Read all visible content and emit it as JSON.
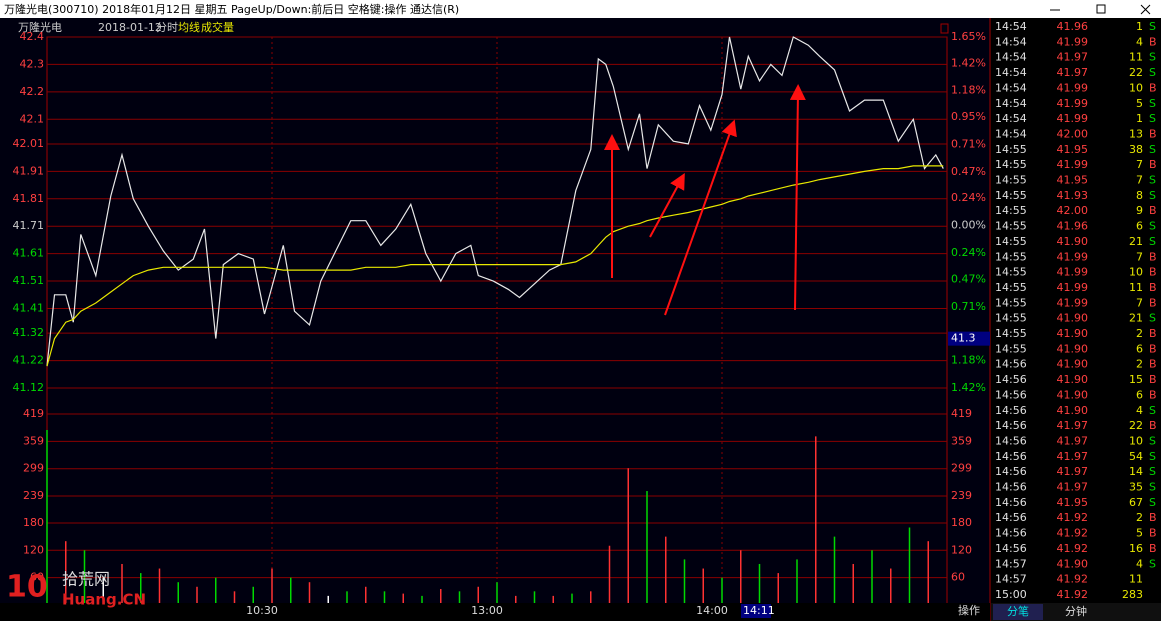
{
  "window": {
    "title": "万隆光电(300710) 2018年01月12日 星期五 PageUp/Down:前后日 空格键:操作 通达信(R)"
  },
  "header": {
    "name": "万隆光电",
    "date": "2018-01-12",
    "mode": "分时",
    "avg_label": "均线",
    "vol_label": "成交量"
  },
  "chart_data": {
    "type": "line",
    "x": [
      0,
      2,
      5,
      7,
      9,
      13,
      17,
      20,
      23,
      27,
      31,
      35,
      39,
      42,
      45,
      47,
      51,
      55,
      58,
      63,
      66,
      70,
      73,
      77,
      81,
      85,
      89,
      93,
      97,
      101,
      105,
      109,
      113,
      115,
      119,
      123,
      126,
      130,
      134,
      137,
      141,
      145,
      147,
      149,
      151,
      155,
      158,
      160,
      163,
      167,
      171,
      174,
      177,
      180,
      182,
      185,
      187,
      190,
      193,
      196,
      199,
      203,
      206,
      210,
      214,
      218,
      223,
      227,
      231,
      234,
      237,
      239
    ],
    "xlim": [
      0,
      240
    ],
    "xticks": [
      {
        "value": 60,
        "label": "10:30"
      },
      {
        "value": 120,
        "label": "13:00"
      },
      {
        "value": 180,
        "label": "14:00"
      }
    ],
    "series": [
      {
        "name": "price",
        "color": "#e8e8e8",
        "values": [
          41.2,
          41.46,
          41.46,
          41.36,
          41.68,
          41.53,
          41.82,
          41.97,
          41.81,
          41.71,
          41.62,
          41.55,
          41.59,
          41.7,
          41.3,
          41.57,
          41.61,
          41.59,
          41.39,
          41.64,
          41.4,
          41.35,
          41.51,
          41.62,
          41.73,
          41.73,
          41.64,
          41.7,
          41.79,
          41.61,
          41.51,
          41.61,
          41.64,
          41.53,
          41.51,
          41.48,
          41.45,
          41.5,
          41.55,
          41.57,
          41.84,
          41.99,
          42.32,
          42.3,
          42.22,
          41.99,
          42.12,
          41.92,
          42.08,
          42.02,
          42.01,
          42.15,
          42.06,
          42.19,
          42.4,
          42.21,
          42.33,
          42.24,
          42.3,
          42.26,
          42.4,
          42.37,
          42.33,
          42.28,
          42.13,
          42.17,
          42.17,
          42.02,
          42.1,
          41.92,
          41.97,
          41.92
        ]
      },
      {
        "name": "均线",
        "color": "#e8e800",
        "values": [
          41.2,
          41.3,
          41.36,
          41.37,
          41.4,
          41.43,
          41.47,
          41.5,
          41.53,
          41.55,
          41.56,
          41.56,
          41.56,
          41.56,
          41.56,
          41.56,
          41.56,
          41.56,
          41.56,
          41.55,
          41.55,
          41.55,
          41.55,
          41.55,
          41.55,
          41.56,
          41.56,
          41.56,
          41.57,
          41.57,
          41.57,
          41.57,
          41.57,
          41.57,
          41.57,
          41.57,
          41.57,
          41.57,
          41.57,
          41.57,
          41.58,
          41.61,
          41.64,
          41.67,
          41.69,
          41.71,
          41.72,
          41.73,
          41.74,
          41.75,
          41.76,
          41.77,
          41.78,
          41.79,
          41.8,
          41.81,
          41.82,
          41.83,
          41.84,
          41.85,
          41.86,
          41.87,
          41.88,
          41.89,
          41.9,
          41.91,
          41.92,
          41.92,
          41.93,
          41.93,
          41.93,
          41.93
        ]
      }
    ],
    "ylim": [
      41.12,
      42.4
    ],
    "yticks": [
      42.4,
      42.3,
      42.2,
      42.1,
      42.01,
      41.91,
      41.81,
      41.71,
      41.61,
      41.51,
      41.41,
      41.32,
      41.22,
      41.12
    ],
    "y2lim": [
      -1.42,
      1.65
    ],
    "y2ticks": [
      {
        "value": 1.65,
        "label": "1.65%"
      },
      {
        "value": 1.42,
        "label": "1.42%"
      },
      {
        "value": 1.18,
        "label": "1.18%"
      },
      {
        "value": 0.95,
        "label": "0.95%"
      },
      {
        "value": 0.71,
        "label": "0.71%"
      },
      {
        "value": 0.47,
        "label": "0.47%"
      },
      {
        "value": 0.24,
        "label": "0.24%"
      },
      {
        "value": 0,
        "label": "0.00%"
      },
      {
        "value": -0.24,
        "label": "0.24%"
      },
      {
        "value": -0.47,
        "label": "0.47%"
      },
      {
        "value": -0.71,
        "label": "0.71%"
      },
      {
        "value": -1.18,
        "label": "1.18%"
      },
      {
        "value": -1.42,
        "label": "1.42%"
      }
    ],
    "cursor_price": 41.3,
    "cursor_time": "14:11",
    "grid": true,
    "volume": {
      "type": "bar",
      "x": [
        0,
        5,
        10,
        15,
        20,
        25,
        30,
        35,
        40,
        45,
        50,
        55,
        60,
        65,
        70,
        75,
        80,
        85,
        90,
        95,
        100,
        105,
        110,
        115,
        120,
        125,
        130,
        135,
        140,
        145,
        150,
        155,
        160,
        165,
        170,
        175,
        180,
        185,
        190,
        195,
        200,
        205,
        210,
        215,
        220,
        225,
        230,
        235
      ],
      "values": [
        384,
        140,
        120,
        60,
        90,
        70,
        80,
        50,
        40,
        60,
        30,
        40,
        80,
        60,
        50,
        20,
        30,
        40,
        30,
        25,
        20,
        35,
        30,
        40,
        50,
        20,
        30,
        20,
        25,
        30,
        130,
        300,
        250,
        150,
        100,
        80,
        60,
        120,
        90,
        70,
        100,
        370,
        150,
        90,
        120,
        80,
        170,
        140
      ],
      "colors": [
        "#00d800",
        "#ff3232",
        "#00d800",
        "#ffffff",
        "#ff3232",
        "#00d800",
        "#ff3232",
        "#00d800",
        "#ff3232",
        "#00d800",
        "#ff3232",
        "#00d800",
        "#ff3232",
        "#00d800",
        "#ff3232",
        "#ffffff",
        "#00d800",
        "#ff3232",
        "#00d800",
        "#ff3232",
        "#00d800",
        "#ff3232",
        "#00d800",
        "#ff3232",
        "#00d800",
        "#ff3232",
        "#00d800",
        "#ff3232",
        "#00d800",
        "#ff3232",
        "#ff3232",
        "#ff3232",
        "#00d800",
        "#ff3232",
        "#00d800",
        "#ff3232",
        "#00d800",
        "#ff3232",
        "#00d800",
        "#ff3232",
        "#00d800",
        "#ff3232",
        "#00d800",
        "#ff3232",
        "#00d800",
        "#ff3232",
        "#00d800",
        "#ff3232"
      ],
      "ylim": [
        0,
        419
      ],
      "yticks": [
        419,
        359,
        299,
        239,
        180,
        120,
        60
      ]
    }
  },
  "trades": {
    "rows": [
      [
        "14:54",
        "41.96",
        "1",
        "S"
      ],
      [
        "14:54",
        "41.99",
        "4",
        "B"
      ],
      [
        "14:54",
        "41.97",
        "11",
        "S"
      ],
      [
        "14:54",
        "41.97",
        "22",
        "S"
      ],
      [
        "14:54",
        "41.99",
        "10",
        "B"
      ],
      [
        "14:54",
        "41.99",
        "5",
        "S"
      ],
      [
        "14:54",
        "41.99",
        "1",
        "S"
      ],
      [
        "14:54",
        "42.00",
        "13",
        "B"
      ],
      [
        "14:55",
        "41.95",
        "38",
        "S"
      ],
      [
        "14:55",
        "41.99",
        "7",
        "B"
      ],
      [
        "14:55",
        "41.95",
        "7",
        "S"
      ],
      [
        "14:55",
        "41.93",
        "8",
        "S"
      ],
      [
        "14:55",
        "42.00",
        "9",
        "B"
      ],
      [
        "14:55",
        "41.96",
        "6",
        "S"
      ],
      [
        "14:55",
        "41.90",
        "21",
        "S"
      ],
      [
        "14:55",
        "41.99",
        "7",
        "B"
      ],
      [
        "14:55",
        "41.99",
        "10",
        "B"
      ],
      [
        "14:55",
        "41.99",
        "11",
        "B"
      ],
      [
        "14:55",
        "41.99",
        "7",
        "B"
      ],
      [
        "14:55",
        "41.90",
        "21",
        "S"
      ],
      [
        "14:55",
        "41.90",
        "2",
        "B"
      ],
      [
        "14:55",
        "41.90",
        "6",
        "B"
      ],
      [
        "14:56",
        "41.90",
        "2",
        "B"
      ],
      [
        "14:56",
        "41.90",
        "15",
        "B"
      ],
      [
        "14:56",
        "41.90",
        "6",
        "B"
      ],
      [
        "14:56",
        "41.90",
        "4",
        "S"
      ],
      [
        "14:56",
        "41.97",
        "22",
        "B"
      ],
      [
        "14:56",
        "41.97",
        "10",
        "S"
      ],
      [
        "14:56",
        "41.97",
        "54",
        "S"
      ],
      [
        "14:56",
        "41.97",
        "14",
        "S"
      ],
      [
        "14:56",
        "41.97",
        "35",
        "S"
      ],
      [
        "14:56",
        "41.95",
        "67",
        "S"
      ],
      [
        "14:56",
        "41.92",
        "2",
        "B"
      ],
      [
        "14:56",
        "41.92",
        "5",
        "B"
      ],
      [
        "14:56",
        "41.92",
        "16",
        "B"
      ],
      [
        "14:57",
        "41.90",
        "4",
        "S"
      ],
      [
        "14:57",
        "41.92",
        "11"
      ],
      [
        "15:00",
        "41.92",
        "283"
      ]
    ],
    "tabs": [
      "分笔",
      "分钟"
    ],
    "action": "操作"
  },
  "watermark": {
    "logo": "10",
    "site": "拾荒网",
    "url": "Huang.CN"
  }
}
